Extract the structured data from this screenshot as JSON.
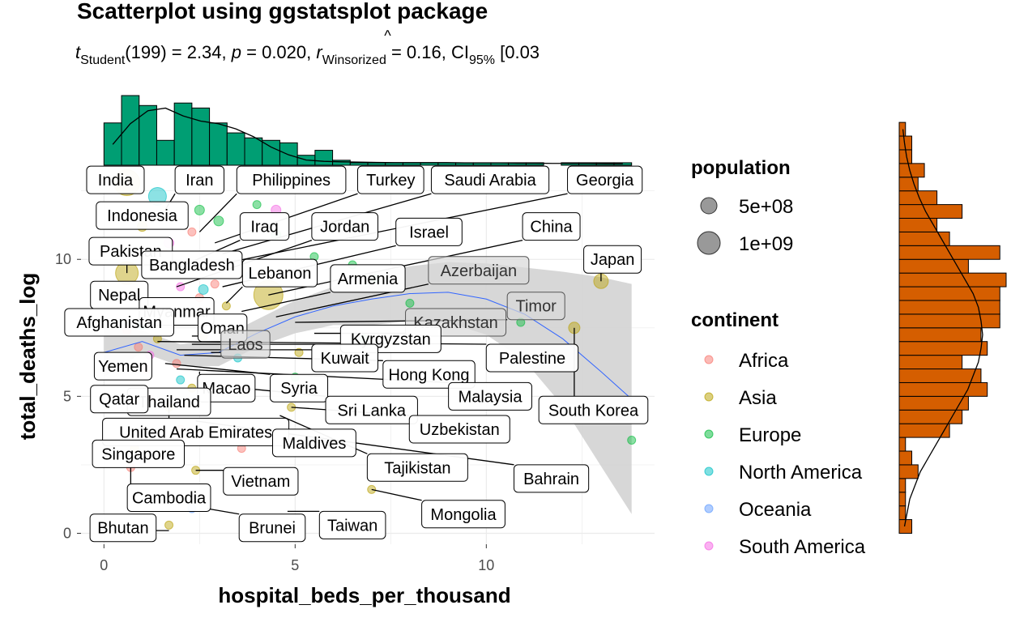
{
  "chart_data": {
    "type": "scatter",
    "title": "Scatterplot using ggstatsplot package",
    "subtitle": {
      "t_prefix": "t",
      "t_sub": "Student",
      "t_rest": "(199) = 2.34, ",
      "p_sym": "p",
      "p_rest": " = 0.020, ",
      "r_sym": "r",
      "r_hat": "^",
      "r_sub": "Winsorized",
      "r_rest": " = 0.16, CI",
      "ci_sub": "95%",
      "ci_rest": " [0.03"
    },
    "xlabel": "hospital_beds_per_thousand",
    "ylabel": "total_deaths_log",
    "xlim": [
      -0.6,
      14.4
    ],
    "ylim": [
      -0.4,
      13.2
    ],
    "x_ticks": [
      0,
      5,
      10
    ],
    "y_ticks": [
      0,
      5,
      10
    ],
    "grid": true,
    "colors": {
      "Africa": "#F8766D",
      "Asia": "#B79F00",
      "Europe": "#00BA38",
      "North America": "#00BFC4",
      "Oceania": "#619CFF",
      "South America": "#F564E3",
      "x_hist": "#009E73",
      "y_hist": "#D55E00",
      "smooth": "#3366FF",
      "ribbon": "#d3d3d3"
    },
    "points": [
      {
        "x": 1.5,
        "y": 7.9,
        "c": "Africa",
        "s": 9
      },
      {
        "x": 2.3,
        "y": 11.0,
        "c": "Africa",
        "s": 5
      },
      {
        "x": 0.9,
        "y": 6.8,
        "c": "Africa",
        "s": 5
      },
      {
        "x": 1.9,
        "y": 6.2,
        "c": "Africa",
        "s": 5
      },
      {
        "x": 2.9,
        "y": 9.1,
        "c": "Africa",
        "s": 5
      },
      {
        "x": 3.7,
        "y": 5.2,
        "c": "Africa",
        "s": 5
      },
      {
        "x": 0.7,
        "y": 2.4,
        "c": "Africa",
        "s": 5
      },
      {
        "x": 1.2,
        "y": 4.9,
        "c": "Africa",
        "s": 5
      },
      {
        "x": 2.0,
        "y": 3.8,
        "c": "Africa",
        "s": 5
      },
      {
        "x": 3.6,
        "y": 3.1,
        "c": "Africa",
        "s": 5
      },
      {
        "x": 1.1,
        "y": 6.0,
        "c": "Africa",
        "s": 5
      },
      {
        "x": 2.5,
        "y": 8.6,
        "c": "Africa",
        "s": 5
      },
      {
        "x": 1.6,
        "y": 10.2,
        "c": "Africa",
        "s": 5
      },
      {
        "x": 0.6,
        "y": 7.4,
        "c": "Africa",
        "s": 5
      },
      {
        "x": 0.6,
        "y": 9.5,
        "c": "Asia",
        "s": 14
      },
      {
        "x": 0.6,
        "y": 12.8,
        "c": "Asia",
        "s": 16
      },
      {
        "x": 4.3,
        "y": 8.7,
        "c": "Asia",
        "s": 18
      },
      {
        "x": 13.0,
        "y": 9.2,
        "c": "Asia",
        "s": 9
      },
      {
        "x": 12.3,
        "y": 7.5,
        "c": "Asia",
        "s": 7
      },
      {
        "x": 7.0,
        "y": 1.6,
        "c": "Asia",
        "s": 5
      },
      {
        "x": 2.4,
        "y": 2.3,
        "c": "Asia",
        "s": 5
      },
      {
        "x": 1.7,
        "y": 0.3,
        "c": "Asia",
        "s": 5
      },
      {
        "x": 1.7,
        "y": 4.6,
        "c": "Asia",
        "s": 5
      },
      {
        "x": 4.9,
        "y": 4.6,
        "c": "Asia",
        "s": 5
      },
      {
        "x": 2.6,
        "y": 7.2,
        "c": "Asia",
        "s": 5
      },
      {
        "x": 1.0,
        "y": 11.2,
        "c": "Asia",
        "s": 6
      },
      {
        "x": 2.3,
        "y": 5.3,
        "c": "Asia",
        "s": 5
      },
      {
        "x": 0.8,
        "y": 3.1,
        "c": "Asia",
        "s": 5
      },
      {
        "x": 5.1,
        "y": 6.6,
        "c": "Asia",
        "s": 5
      },
      {
        "x": 3.2,
        "y": 8.3,
        "c": "Asia",
        "s": 5
      },
      {
        "x": 1.4,
        "y": 7.1,
        "c": "Asia",
        "s": 5
      },
      {
        "x": 4.5,
        "y": 10.9,
        "c": "Europe",
        "s": 6
      },
      {
        "x": 6.5,
        "y": 9.8,
        "c": "Europe",
        "s": 5
      },
      {
        "x": 3.0,
        "y": 11.4,
        "c": "Europe",
        "s": 6
      },
      {
        "x": 5.5,
        "y": 10.1,
        "c": "Europe",
        "s": 5
      },
      {
        "x": 7.1,
        "y": 9.3,
        "c": "Europe",
        "s": 5
      },
      {
        "x": 8.0,
        "y": 8.4,
        "c": "Europe",
        "s": 5
      },
      {
        "x": 4.0,
        "y": 12.0,
        "c": "Europe",
        "s": 5
      },
      {
        "x": 10.9,
        "y": 7.7,
        "c": "Europe",
        "s": 5
      },
      {
        "x": 2.5,
        "y": 11.8,
        "c": "Europe",
        "s": 6
      },
      {
        "x": 6.8,
        "y": 7.1,
        "c": "Europe",
        "s": 5
      },
      {
        "x": 13.8,
        "y": 3.4,
        "c": "Europe",
        "s": 5
      },
      {
        "x": 5.0,
        "y": 5.7,
        "c": "Europe",
        "s": 5
      },
      {
        "x": 1.4,
        "y": 12.3,
        "c": "North America",
        "s": 11
      },
      {
        "x": 2.6,
        "y": 8.9,
        "c": "North America",
        "s": 6
      },
      {
        "x": 1.0,
        "y": 7.6,
        "c": "North America",
        "s": 5
      },
      {
        "x": 2.0,
        "y": 5.6,
        "c": "North America",
        "s": 5
      },
      {
        "x": 3.5,
        "y": 6.4,
        "c": "North America",
        "s": 5
      },
      {
        "x": 2.3,
        "y": 0.9,
        "c": "Oceania",
        "s": 5
      },
      {
        "x": 3.8,
        "y": 9.4,
        "c": "Oceania",
        "s": 5
      },
      {
        "x": 1.7,
        "y": 10.6,
        "c": "South America",
        "s": 6
      },
      {
        "x": 4.5,
        "y": 11.8,
        "c": "South America",
        "s": 6
      },
      {
        "x": 2.0,
        "y": 9.0,
        "c": "South America",
        "s": 5
      },
      {
        "x": 1.2,
        "y": 6.5,
        "c": "South America",
        "s": 5
      }
    ],
    "smooth": {
      "x": [
        0.0,
        1.0,
        2.0,
        3.0,
        4.0,
        5.0,
        6.0,
        7.0,
        8.0,
        9.0,
        10.0,
        11.0,
        12.0,
        13.0,
        13.8
      ],
      "y": [
        6.6,
        7.0,
        6.5,
        6.6,
        7.3,
        7.9,
        8.3,
        8.55,
        8.75,
        8.8,
        8.55,
        8.0,
        7.1,
        5.9,
        4.9
      ],
      "upper": [
        7.5,
        7.4,
        6.9,
        7.1,
        7.8,
        8.5,
        9.0,
        9.5,
        9.75,
        9.9,
        9.85,
        9.7,
        9.55,
        9.35,
        9.1
      ],
      "lower": [
        5.7,
        6.6,
        6.1,
        6.1,
        6.8,
        7.3,
        7.6,
        7.6,
        7.75,
        7.7,
        7.25,
        6.3,
        4.65,
        2.45,
        0.7
      ]
    },
    "labels": [
      {
        "text": "India",
        "lx": 0.3,
        "ly": 12.9,
        "px": 0.6,
        "py": 12.8
      },
      {
        "text": "Iran",
        "lx": 2.5,
        "ly": 12.9,
        "px": 1.6,
        "py": 11.8
      },
      {
        "text": "Philippines",
        "lx": 4.9,
        "ly": 12.9,
        "px": 2.5,
        "py": 11.0
      },
      {
        "text": "Turkey",
        "lx": 7.5,
        "ly": 12.9,
        "px": 2.9,
        "py": 10.6
      },
      {
        "text": "Saudi Arabia",
        "lx": 10.1,
        "ly": 12.9,
        "px": 3.1,
        "py": 10.2
      },
      {
        "text": "Georgia",
        "lx": 13.1,
        "ly": 12.9,
        "px": 3.3,
        "py": 9.9
      },
      {
        "text": "Indonesia",
        "lx": 1.0,
        "ly": 11.6,
        "px": 1.0,
        "py": 11.2
      },
      {
        "text": "Iraq",
        "lx": 4.2,
        "ly": 11.2,
        "px": 1.8,
        "py": 9.6
      },
      {
        "text": "Jordan",
        "lx": 6.3,
        "ly": 11.2,
        "px": 1.9,
        "py": 9.0
      },
      {
        "text": "Israel",
        "lx": 8.5,
        "ly": 11.0,
        "px": 3.1,
        "py": 9.0
      },
      {
        "text": "China",
        "lx": 11.7,
        "ly": 11.2,
        "px": 4.3,
        "py": 8.7
      },
      {
        "text": "Pakistan",
        "lx": 0.7,
        "ly": 10.3,
        "px": 0.6,
        "py": 9.5
      },
      {
        "text": "Japan",
        "lx": 13.3,
        "ly": 10.0,
        "px": 13.0,
        "py": 9.2
      },
      {
        "text": "Bangladesh",
        "lx": 2.3,
        "ly": 9.8,
        "px": 1.8,
        "py": 9.3
      },
      {
        "text": "Lebanon",
        "lx": 4.6,
        "ly": 9.5,
        "px": 3.2,
        "py": 8.4
      },
      {
        "text": "Armenia",
        "lx": 6.9,
        "ly": 9.3,
        "px": 3.6,
        "py": 8.1
      },
      {
        "text": "Azerbaijan",
        "lx": 9.8,
        "ly": 9.6,
        "px": 4.5,
        "py": 7.9
      },
      {
        "text": "Nepal",
        "lx": 0.4,
        "ly": 8.7,
        "px": 0.3,
        "py": 8.3
      },
      {
        "text": "Timor",
        "lx": 11.3,
        "ly": 8.3,
        "px": 5.0,
        "py": 7.7
      },
      {
        "text": "Myanmar",
        "lx": 1.9,
        "ly": 8.1,
        "px": 0.9,
        "py": 7.6
      },
      {
        "text": "Afghanistan",
        "lx": 0.4,
        "ly": 7.7,
        "px": 0.5,
        "py": 7.2
      },
      {
        "text": "Kazakhstan",
        "lx": 9.2,
        "ly": 7.7,
        "px": 5.5,
        "py": 7.3
      },
      {
        "text": "Oman",
        "lx": 3.1,
        "ly": 7.5,
        "px": 2.3,
        "py": 7.2
      },
      {
        "text": "Kyrgyzstan",
        "lx": 7.5,
        "ly": 7.1,
        "px": 2.3,
        "py": 6.9
      },
      {
        "text": "Laos",
        "lx": 3.7,
        "ly": 6.9,
        "px": 2.8,
        "py": 6.6
      },
      {
        "text": "Kuwait",
        "lx": 6.3,
        "ly": 6.4,
        "px": 1.9,
        "py": 6.7
      },
      {
        "text": "Palestine",
        "lx": 11.2,
        "ly": 6.4,
        "px": 1.4,
        "py": 7.0
      },
      {
        "text": "Yemen",
        "lx": 0.5,
        "ly": 6.1,
        "px": 0.7,
        "py": 6.4
      },
      {
        "text": "Hong Kong",
        "lx": 8.5,
        "ly": 5.8,
        "px": 2.1,
        "py": 6.5
      },
      {
        "text": "Macao",
        "lx": 3.2,
        "ly": 5.3,
        "px": 2.5,
        "py": 5.9
      },
      {
        "text": "Syria",
        "lx": 5.1,
        "ly": 5.3,
        "px": 1.6,
        "py": 6.2
      },
      {
        "text": "Malaysia",
        "lx": 10.1,
        "ly": 5.0,
        "px": 1.9,
        "py": 6.0
      },
      {
        "text": "Thailand",
        "lx": 1.7,
        "ly": 4.8,
        "px": 1.2,
        "py": 5.3
      },
      {
        "text": "Qatar",
        "lx": 0.4,
        "ly": 4.9,
        "px": 1.2,
        "py": 4.9
      },
      {
        "text": "Sri Lanka",
        "lx": 7.0,
        "ly": 4.5,
        "px": 3.6,
        "py": 5.3
      },
      {
        "text": "South Korea",
        "lx": 12.8,
        "ly": 4.5,
        "px": 12.3,
        "py": 7.5
      },
      {
        "text": "United Arab Emirates",
        "lx": 2.4,
        "ly": 3.7,
        "px": 1.7,
        "py": 4.6
      },
      {
        "text": "Uzbekistan",
        "lx": 9.3,
        "ly": 3.8,
        "px": 4.9,
        "py": 4.6
      },
      {
        "text": "Maldives",
        "lx": 5.5,
        "ly": 3.3,
        "px": 3.6,
        "py": 3.8
      },
      {
        "text": "Singapore",
        "lx": 0.9,
        "ly": 2.9,
        "px": 1.0,
        "py": 3.3
      },
      {
        "text": "Tajikistan",
        "lx": 8.2,
        "ly": 2.4,
        "px": 4.6,
        "py": 4.3
      },
      {
        "text": "Bahrain",
        "lx": 11.7,
        "ly": 2.0,
        "px": 2.4,
        "py": 4.1
      },
      {
        "text": "Vietnam",
        "lx": 4.1,
        "ly": 1.9,
        "px": 2.4,
        "py": 2.3
      },
      {
        "text": "Cambodia",
        "lx": 1.7,
        "ly": 1.3,
        "px": 0.7,
        "py": 2.4
      },
      {
        "text": "Mongolia",
        "lx": 9.4,
        "ly": 0.7,
        "px": 7.0,
        "py": 1.6
      },
      {
        "text": "Taiwan",
        "lx": 6.5,
        "ly": 0.3,
        "px": 4.8,
        "py": 0.8
      },
      {
        "text": "Brunei",
        "lx": 4.4,
        "ly": 0.2,
        "px": 2.7,
        "py": 0.9
      },
      {
        "text": "Bhutan",
        "lx": 0.5,
        "ly": 0.2,
        "px": 1.7,
        "py": 0.1
      }
    ],
    "faded_labels": [
      "Azerbaijan",
      "Timor",
      "Kazakhstan",
      "Laos"
    ],
    "x_hist": {
      "bin_edges_start": 0.0,
      "bin_width": 0.46,
      "counts": [
        17,
        28,
        24,
        10,
        25,
        23,
        17,
        13,
        11,
        10,
        9,
        4,
        6,
        2,
        1,
        1,
        1,
        1,
        1,
        1,
        1,
        1,
        1,
        1,
        1,
        0,
        1,
        1,
        1,
        1
      ],
      "density": [
        8,
        16,
        21,
        22,
        19,
        17,
        16,
        14,
        11,
        7,
        4,
        2,
        1.5,
        1.3,
        1.2,
        1.1,
        1,
        1,
        1,
        1,
        0.9,
        0.9,
        0.9,
        0.8,
        0.8,
        0.7,
        0.7,
        0.7,
        0.6,
        0.6
      ]
    },
    "y_hist": {
      "bin_edges_start": 0.0,
      "bin_width": 0.5,
      "counts": [
        2,
        1,
        1,
        1,
        3,
        2,
        1,
        8,
        10,
        11,
        14,
        13,
        10,
        14,
        13,
        16,
        16,
        16,
        17,
        11,
        16,
        8,
        6,
        10,
        6,
        3,
        4,
        2,
        2,
        1
      ],
      "density": [
        1,
        1.5,
        2,
        3,
        4,
        5.5,
        7,
        8.5,
        10,
        11.5,
        13,
        14,
        15,
        15.5,
        15.8,
        15.5,
        15,
        14,
        12.5,
        11,
        9.5,
        8,
        6.5,
        5,
        3.8,
        2.8,
        2,
        1.4,
        1,
        0.7
      ]
    },
    "legend": {
      "population_title": "population",
      "population_items": [
        "5e+08",
        "1e+09"
      ],
      "continent_title": "continent",
      "continent_items": [
        "Africa",
        "Asia",
        "Europe",
        "North America",
        "Oceania",
        "South America"
      ]
    }
  }
}
